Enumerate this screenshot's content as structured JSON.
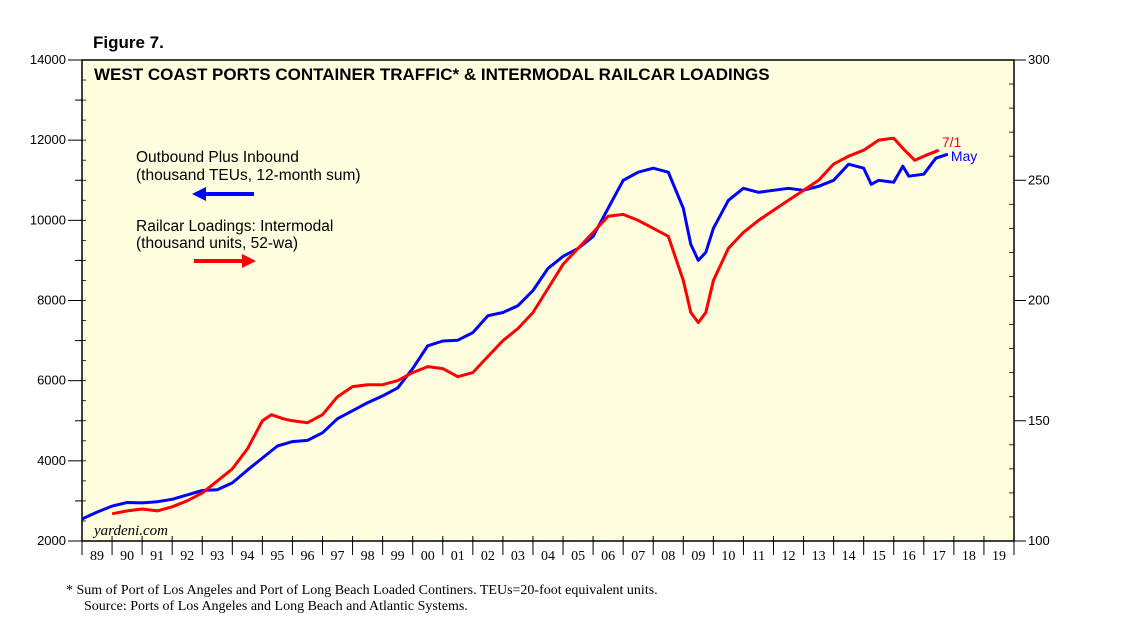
{
  "figure_label": "Figure 7.",
  "watermark": "yardeni.com",
  "footnote": "*  Sum of Port of Los Angeles and Port of Long Beach Loaded Continers. TEUs=20-foot equivalent units.",
  "source": "Source: Ports of Los Angeles and Long Beach and Atlantic Systems.",
  "colors": {
    "background": "#FFFFE0",
    "blue": "#0000FF",
    "red": "#FF0000"
  },
  "chart_data": {
    "type": "line",
    "title": "WEST COAST PORTS CONTAINER TRAFFIC* & INTERMODAL RAILCAR LOADINGS",
    "x_ticks": [
      "89",
      "90",
      "91",
      "92",
      "93",
      "94",
      "95",
      "96",
      "97",
      "98",
      "99",
      "00",
      "01",
      "02",
      "03",
      "04",
      "05",
      "06",
      "07",
      "08",
      "09",
      "10",
      "11",
      "12",
      "13",
      "14",
      "15",
      "16",
      "17",
      "18",
      "19"
    ],
    "x_range": [
      1989,
      2020
    ],
    "left_axis": {
      "range": [
        2000,
        14000
      ],
      "ticks": [
        "2000",
        "4000",
        "6000",
        "8000",
        "10000",
        "12000",
        "14000"
      ]
    },
    "right_axis": {
      "range": [
        100,
        300
      ],
      "ticks": [
        "100",
        "150",
        "200",
        "250",
        "300"
      ]
    },
    "legend": {
      "blue_line1": "Outbound Plus Inbound",
      "blue_line2": "(thousand TEUs, 12-month sum)",
      "red_line1": "Railcar Loadings: Intermodal",
      "red_line2": "(thousand units, 52-wa)"
    },
    "series": [
      {
        "name": "Outbound Plus Inbound (thousand TEUs, 12-month sum)",
        "axis": "left",
        "color": "#0000FF",
        "end_label": "May",
        "points": [
          [
            1989.0,
            2550
          ],
          [
            1989.5,
            2720
          ],
          [
            1990.0,
            2870
          ],
          [
            1990.5,
            2960
          ],
          [
            1991.0,
            2950
          ],
          [
            1991.5,
            2980
          ],
          [
            1992.0,
            3040
          ],
          [
            1992.5,
            3150
          ],
          [
            1993.0,
            3260
          ],
          [
            1993.5,
            3280
          ],
          [
            1994.0,
            3450
          ],
          [
            1994.5,
            3770
          ],
          [
            1995.0,
            4070
          ],
          [
            1995.5,
            4370
          ],
          [
            1996.0,
            4480
          ],
          [
            1996.5,
            4510
          ],
          [
            1997.0,
            4700
          ],
          [
            1997.5,
            5050
          ],
          [
            1998.0,
            5250
          ],
          [
            1998.5,
            5450
          ],
          [
            1999.0,
            5620
          ],
          [
            1999.5,
            5820
          ],
          [
            2000.0,
            6300
          ],
          [
            2000.5,
            6870
          ],
          [
            2001.0,
            6990
          ],
          [
            2001.5,
            7010
          ],
          [
            2002.0,
            7200
          ],
          [
            2002.5,
            7620
          ],
          [
            2003.0,
            7700
          ],
          [
            2003.5,
            7870
          ],
          [
            2004.0,
            8250
          ],
          [
            2004.5,
            8800
          ],
          [
            2005.0,
            9100
          ],
          [
            2005.5,
            9300
          ],
          [
            2006.0,
            9600
          ],
          [
            2006.5,
            10300
          ],
          [
            2007.0,
            11000
          ],
          [
            2007.5,
            11200
          ],
          [
            2008.0,
            11300
          ],
          [
            2008.5,
            11200
          ],
          [
            2009.0,
            10300
          ],
          [
            2009.25,
            9400
          ],
          [
            2009.5,
            9000
          ],
          [
            2009.75,
            9200
          ],
          [
            2010.0,
            9800
          ],
          [
            2010.5,
            10500
          ],
          [
            2011.0,
            10800
          ],
          [
            2011.5,
            10700
          ],
          [
            2012.0,
            10750
          ],
          [
            2012.5,
            10800
          ],
          [
            2013.0,
            10750
          ],
          [
            2013.5,
            10850
          ],
          [
            2014.0,
            11000
          ],
          [
            2014.5,
            11400
          ],
          [
            2015.0,
            11300
          ],
          [
            2015.25,
            10900
          ],
          [
            2015.5,
            11000
          ],
          [
            2016.0,
            10950
          ],
          [
            2016.3,
            11350
          ],
          [
            2016.5,
            11100
          ],
          [
            2017.0,
            11150
          ],
          [
            2017.4,
            11550
          ],
          [
            2017.8,
            11650
          ]
        ]
      },
      {
        "name": "Railcar Loadings: Intermodal (thousand units, 52-wa)",
        "axis": "right",
        "color": "#FF0000",
        "end_label": "7/1",
        "points": [
          [
            1990.0,
            111.3
          ],
          [
            1990.5,
            112.5
          ],
          [
            1991.0,
            113.3
          ],
          [
            1991.5,
            112.5
          ],
          [
            1992.0,
            114.2
          ],
          [
            1992.5,
            116.7
          ],
          [
            1993.0,
            120.0
          ],
          [
            1993.5,
            125.0
          ],
          [
            1994.0,
            130.0
          ],
          [
            1994.5,
            138.3
          ],
          [
            1995.0,
            150.0
          ],
          [
            1995.3,
            152.5
          ],
          [
            1995.7,
            150.8
          ],
          [
            1996.0,
            150.0
          ],
          [
            1996.5,
            149.2
          ],
          [
            1997.0,
            152.5
          ],
          [
            1997.5,
            160.0
          ],
          [
            1998.0,
            164.2
          ],
          [
            1998.5,
            165.0
          ],
          [
            1999.0,
            165.0
          ],
          [
            1999.5,
            166.7
          ],
          [
            2000.0,
            170.0
          ],
          [
            2000.5,
            172.5
          ],
          [
            2001.0,
            171.7
          ],
          [
            2001.5,
            168.3
          ],
          [
            2002.0,
            170.0
          ],
          [
            2002.5,
            176.7
          ],
          [
            2003.0,
            183.3
          ],
          [
            2003.5,
            188.3
          ],
          [
            2004.0,
            195.0
          ],
          [
            2004.5,
            205.0
          ],
          [
            2005.0,
            215.0
          ],
          [
            2005.5,
            221.7
          ],
          [
            2006.0,
            228.3
          ],
          [
            2006.5,
            235.0
          ],
          [
            2007.0,
            235.8
          ],
          [
            2007.5,
            233.3
          ],
          [
            2008.0,
            230.0
          ],
          [
            2008.5,
            226.7
          ],
          [
            2009.0,
            208.3
          ],
          [
            2009.25,
            195.0
          ],
          [
            2009.5,
            190.8
          ],
          [
            2009.75,
            195.0
          ],
          [
            2010.0,
            208.3
          ],
          [
            2010.5,
            221.7
          ],
          [
            2011.0,
            228.3
          ],
          [
            2011.5,
            233.3
          ],
          [
            2012.0,
            237.5
          ],
          [
            2012.5,
            241.7
          ],
          [
            2013.0,
            245.8
          ],
          [
            2013.5,
            250.0
          ],
          [
            2014.0,
            256.7
          ],
          [
            2014.5,
            260.0
          ],
          [
            2015.0,
            262.5
          ],
          [
            2015.5,
            266.7
          ],
          [
            2016.0,
            267.5
          ],
          [
            2016.3,
            263.3
          ],
          [
            2016.7,
            258.3
          ],
          [
            2017.0,
            260.0
          ],
          [
            2017.5,
            262.5
          ]
        ]
      }
    ]
  }
}
